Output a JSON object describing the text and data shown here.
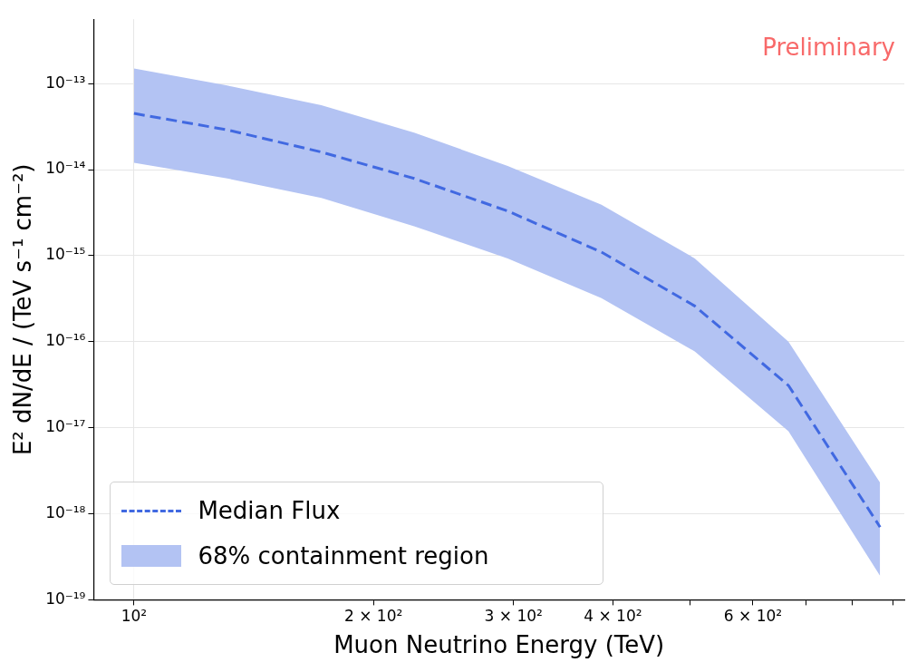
{
  "chart_data": {
    "type": "line",
    "xlabel": "Muon Neutrino Energy (TeV)",
    "ylabel": "E² dN/dE / (TeV s⁻¹ cm⁻²)",
    "annotations": [
      "Preliminary"
    ],
    "x": [
      100,
      131,
      172,
      225,
      295,
      387,
      507,
      665,
      867
    ],
    "series": [
      {
        "name": "Median Flux",
        "color": "#4169e1",
        "line_style": "dashed",
        "values": [
          4.5e-14,
          2.9e-14,
          1.6e-14,
          7.9e-15,
          3.3e-15,
          1.1e-15,
          2.6e-16,
          3.1e-17,
          7e-19
        ]
      },
      {
        "name": "68% containment region",
        "type": "area",
        "color": "#b3c3f3",
        "values": [
          null,
          null,
          null,
          null,
          null,
          null,
          null,
          null,
          null
        ],
        "lower": [
          1.2e-14,
          7.9e-15,
          4.7e-15,
          2.2e-15,
          9.3e-16,
          3.2e-16,
          7.7e-17,
          9.1e-18,
          1.9e-19
        ],
        "upper": [
          1.5e-13,
          9.5e-14,
          5.6e-14,
          2.7e-14,
          1.1e-14,
          3.9e-15,
          9.3e-16,
          1e-16,
          2.3e-18
        ]
      }
    ],
    "log": "xy",
    "xlim": [
      89,
      930
    ],
    "ylim": [
      1e-19,
      5.6e-13
    ],
    "xticks": [
      {
        "value": 100,
        "label": "10²"
      },
      {
        "value": 200,
        "label": "2 × 10²"
      },
      {
        "value": 300,
        "label": "3 × 10²"
      },
      {
        "value": 400,
        "label": "4 × 10²"
      },
      {
        "value": 500,
        "label": null
      },
      {
        "value": 600,
        "label": "6 × 10²"
      },
      {
        "value": 700,
        "label": null
      },
      {
        "value": 800,
        "label": null
      },
      {
        "value": 900,
        "label": null
      }
    ],
    "yticks": [
      {
        "value": 1e-19,
        "label": "10⁻¹⁹"
      },
      {
        "value": 1e-18,
        "label": "10⁻¹⁸"
      },
      {
        "value": 1e-17,
        "label": "10⁻¹⁷"
      },
      {
        "value": 1e-16,
        "label": "10⁻¹⁶"
      },
      {
        "value": 1e-15,
        "label": "10⁻¹⁵"
      },
      {
        "value": 1e-14,
        "label": "10⁻¹⁴"
      },
      {
        "value": 1e-13,
        "label": "10⁻¹³"
      }
    ],
    "grid": true,
    "legend": "bottom left"
  }
}
